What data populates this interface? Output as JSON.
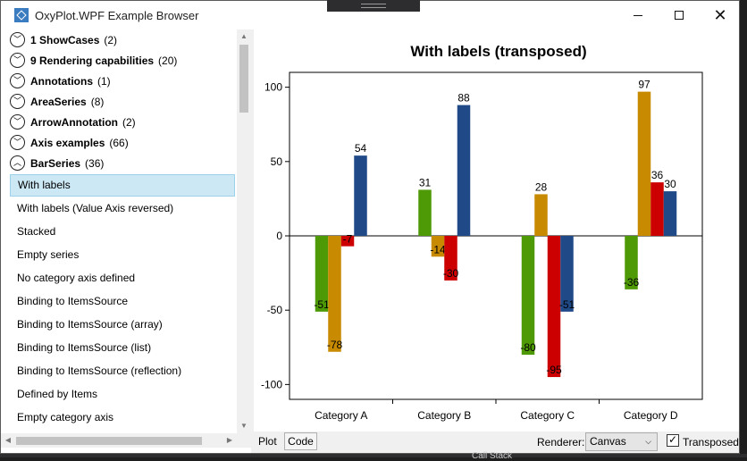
{
  "window": {
    "title": "OxyPlot.WPF Example Browser"
  },
  "tree": {
    "groups": [
      {
        "name": "1 ShowCases",
        "count": "(2)",
        "expanded": false
      },
      {
        "name": "9 Rendering capabilities",
        "count": "(20)",
        "expanded": false
      },
      {
        "name": "Annotations",
        "count": "(1)",
        "expanded": false
      },
      {
        "name": "AreaSeries",
        "count": "(8)",
        "expanded": false
      },
      {
        "name": "ArrowAnnotation",
        "count": "(2)",
        "expanded": false
      },
      {
        "name": "Axis examples",
        "count": "(66)",
        "expanded": false
      },
      {
        "name": "BarSeries",
        "count": "(36)",
        "expanded": true
      }
    ],
    "items": [
      {
        "label": "With labels",
        "selected": true
      },
      {
        "label": "With labels (Value Axis reversed)"
      },
      {
        "label": "Stacked"
      },
      {
        "label": "Empty series"
      },
      {
        "label": "No category axis defined"
      },
      {
        "label": "Binding to ItemsSource"
      },
      {
        "label": "Binding to ItemsSource (array)"
      },
      {
        "label": "Binding to ItemsSource (list)"
      },
      {
        "label": "Binding to ItemsSource (reflection)"
      },
      {
        "label": "Defined by Items"
      },
      {
        "label": "Empty category axis"
      }
    ]
  },
  "chart_data": {
    "type": "bar",
    "title": "With labels (transposed)",
    "categories": [
      "Category A",
      "Category B",
      "Category C",
      "Category D"
    ],
    "series": [
      {
        "color": "#4e9a06",
        "values": [
          -51,
          31,
          -80,
          -36
        ]
      },
      {
        "color": "#c88a00",
        "values": [
          -78,
          -14,
          28,
          97
        ]
      },
      {
        "color": "#cc0000",
        "values": [
          -7,
          -30,
          -95,
          36
        ]
      },
      {
        "color": "#204a87",
        "values": [
          54,
          88,
          -51,
          30
        ]
      }
    ],
    "ylim": [
      -110,
      110
    ],
    "yticks": [
      -100,
      -50,
      0,
      50,
      100
    ],
    "grid": false
  },
  "bottom": {
    "plot_tab": "Plot",
    "code_tab": "Code",
    "renderer_label": "Renderer:",
    "renderer_value": "Canvas",
    "transposed_label": "Transposed",
    "transposed_checked": true
  },
  "vs_bottom_text": "Call Stack"
}
